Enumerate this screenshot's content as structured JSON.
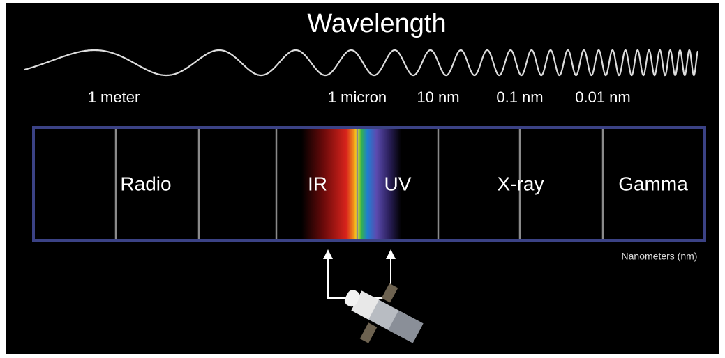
{
  "title": "Wavelength",
  "scale_labels": [
    "1 meter",
    "1 micron",
    "10 nm",
    "0.1 nm",
    "0.01 nm"
  ],
  "bands": [
    "Radio",
    "IR",
    "UV",
    "X-ray",
    "Gamma"
  ],
  "unit_label": "Nanometers (nm)"
}
